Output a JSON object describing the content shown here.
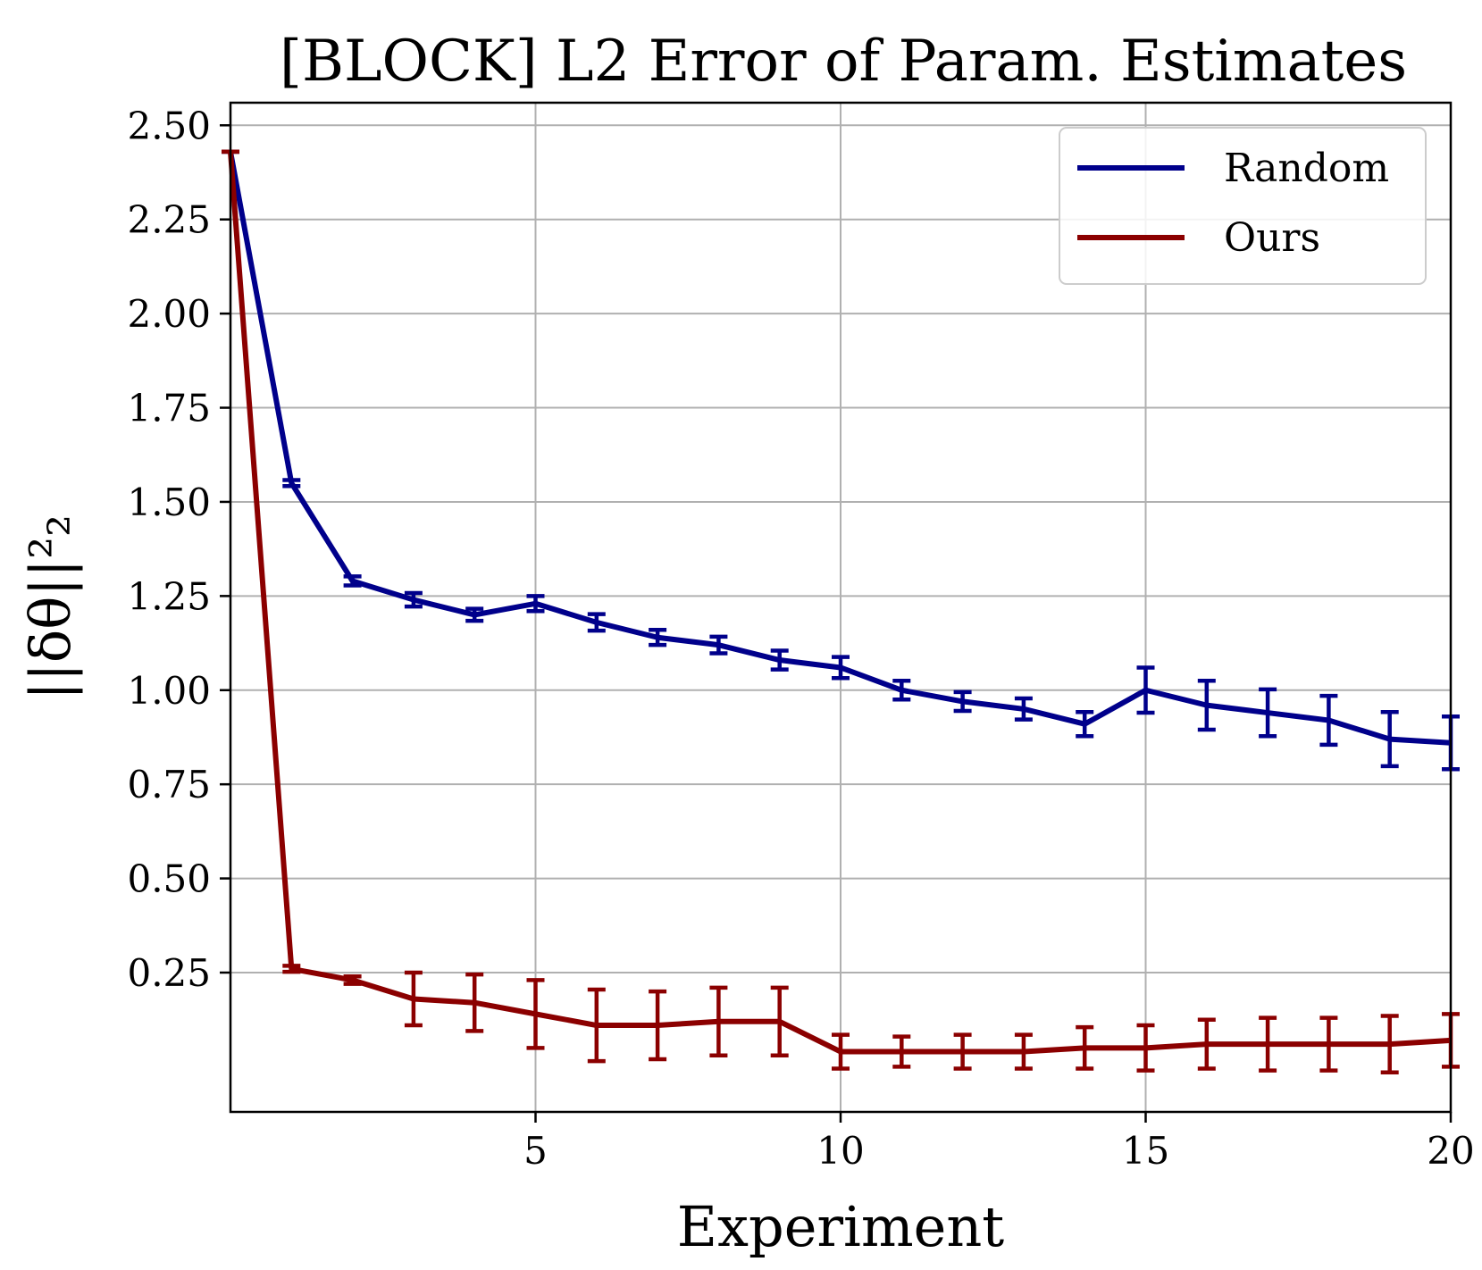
{
  "chart_data": {
    "type": "line",
    "title": "[BLOCK] L2 Error of Param. Estimates",
    "xlabel": "Experiment",
    "ylabel": "||δθ||²₂",
    "xlim": [
      0,
      20
    ],
    "ylim": [
      -0.12,
      2.56
    ],
    "x_ticks": [
      5,
      10,
      15,
      20
    ],
    "y_ticks": [
      0.25,
      0.5,
      0.75,
      1.0,
      1.25,
      1.5,
      1.75,
      2.0,
      2.25,
      2.5
    ],
    "y_tick_labels": [
      "0.25",
      "0.50",
      "0.75",
      "1.00",
      "1.25",
      "1.50",
      "1.75",
      "2.00",
      "2.25",
      "2.50"
    ],
    "grid": true,
    "legend_position": "top-right",
    "x": [
      0,
      1,
      2,
      3,
      4,
      5,
      6,
      7,
      8,
      9,
      10,
      11,
      12,
      13,
      14,
      15,
      16,
      17,
      18,
      19,
      20
    ],
    "series": [
      {
        "name": "Random",
        "color": "#00008b",
        "values": [
          2.43,
          1.55,
          1.29,
          1.24,
          1.2,
          1.23,
          1.18,
          1.14,
          1.12,
          1.08,
          1.06,
          1.0,
          0.97,
          0.95,
          0.91,
          1.0,
          0.96,
          0.94,
          0.92,
          0.87,
          0.86
        ],
        "errors": [
          0.0,
          0.008,
          0.012,
          0.018,
          0.016,
          0.02,
          0.022,
          0.02,
          0.022,
          0.025,
          0.028,
          0.025,
          0.025,
          0.028,
          0.032,
          0.06,
          0.065,
          0.062,
          0.065,
          0.072,
          0.07
        ]
      },
      {
        "name": "Ours",
        "color": "#8b0000",
        "values": [
          2.43,
          0.26,
          0.23,
          0.18,
          0.17,
          0.14,
          0.11,
          0.11,
          0.12,
          0.12,
          0.04,
          0.04,
          0.04,
          0.04,
          0.05,
          0.05,
          0.06,
          0.06,
          0.06,
          0.06,
          0.07
        ],
        "errors": [
          0.0,
          0.008,
          0.01,
          0.07,
          0.075,
          0.09,
          0.095,
          0.09,
          0.09,
          0.09,
          0.045,
          0.04,
          0.045,
          0.045,
          0.055,
          0.06,
          0.065,
          0.07,
          0.07,
          0.075,
          0.07
        ]
      }
    ]
  }
}
